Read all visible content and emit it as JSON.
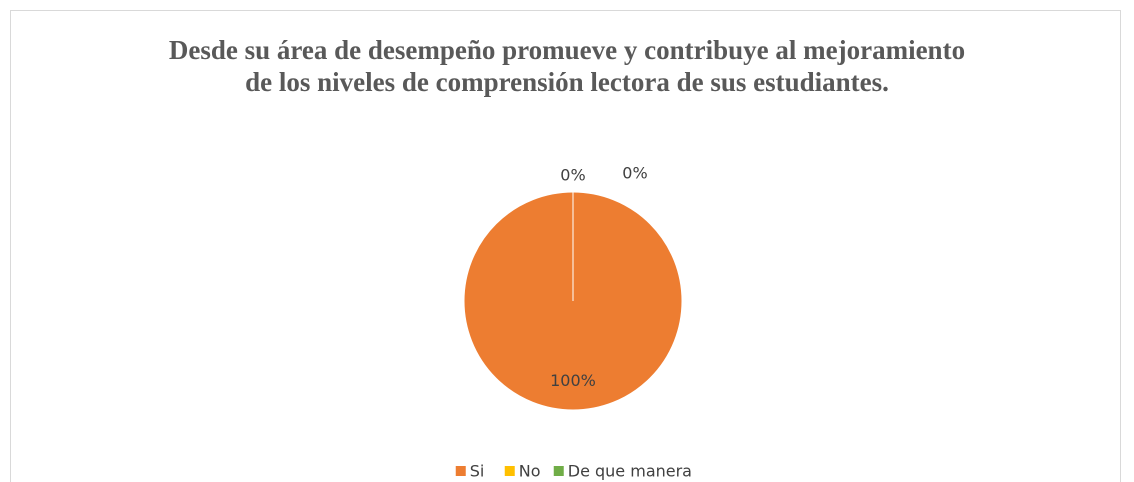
{
  "chart_data": {
    "type": "pie",
    "title": "Desde su área de desempeño promueve y contribuye al mejoramiento de los niveles de comprensión lectora de sus estudiantes.",
    "categories": [
      "Si",
      "No",
      "De que manera"
    ],
    "values": [
      100,
      0,
      0
    ],
    "value_labels": [
      "100%",
      "0%",
      "0%"
    ],
    "colors": [
      "#ED7D31",
      "#FFC000",
      "#70AD47"
    ],
    "legend": "bottom"
  }
}
